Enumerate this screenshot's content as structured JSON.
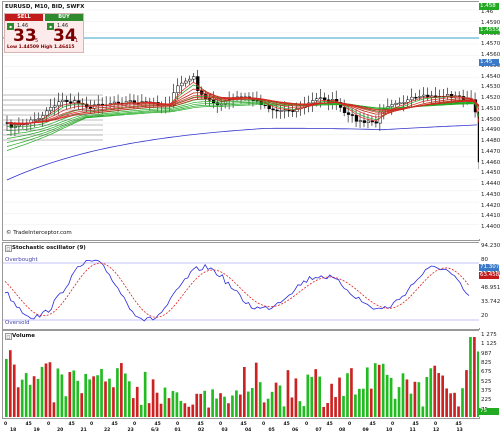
{
  "main_chart": {
    "symbol_header": "EURUSD, M10, BID, SWFX",
    "watermark": "© TradeInterceptor.com",
    "y_axis_labels": [
      "1.46",
      "1.45900",
      "1.45800",
      "1.45700",
      "1.45600",
      "1.45500",
      "1.45400",
      "1.45300",
      "1.45200",
      "1.45100",
      "1.45000",
      "1.44900",
      "1.44800",
      "1.44700",
      "1.44600",
      "1.44500",
      "1.44400",
      "1.44300",
      "1.44200",
      "1.44100",
      "1.44000"
    ],
    "price_tags": {
      "top": "1.458",
      "mid": "1.4555",
      "current": "1.45_"
    },
    "colors": {
      "bull_candle": "#ffffff",
      "bear_candle": "#000000",
      "ma_fast": "#dd2222",
      "ma_slow": "#22aa22",
      "ma_long": "#3333cc",
      "hline": "#3aa0c8"
    }
  },
  "trade_ticket": {
    "sell_label": "SELL",
    "buy_label": "BUY",
    "sell_small": "1.46",
    "buy_small": "1.46",
    "sell_big": "33",
    "buy_big": "34",
    "sell_sup": "5",
    "buy_sup": "1",
    "low_high": "Low 1.44509  High 1.46415",
    "sell_color": "#c21b1b",
    "buy_color": "#2e8b2e"
  },
  "stochastic": {
    "title": "Stochastic oscillator (9)",
    "overbought_label": "Overbought",
    "oversold_label": "Oversold",
    "y_labels": [
      "94.230",
      "80",
      "67.258",
      "48.951",
      "33.742",
      "20"
    ],
    "tag_top": "71.307",
    "tag_mid": "63.458",
    "colors": {
      "k_line": "#2b2bdd",
      "d_line": "#e02020",
      "level": "#8888ff"
    }
  },
  "volume": {
    "title": "Volume",
    "y_labels": [
      "1 275",
      "1 125",
      "987",
      "825",
      "675",
      "525",
      "375",
      "225",
      "75"
    ],
    "tag": "75",
    "colors": {
      "up": "#22bb22",
      "down": "#cc2222"
    }
  },
  "x_axis": {
    "top_row": [
      "0",
      "45",
      "0",
      "45",
      "0",
      "45",
      "0",
      "45",
      "0",
      "45",
      "0",
      "45",
      "0",
      "45",
      "0",
      "45",
      "0",
      "45",
      "0",
      "45",
      "0",
      "45"
    ],
    "bottom_row": [
      "18",
      "19",
      "20",
      "21",
      "22",
      "23",
      "6/3",
      "01",
      "02",
      "03",
      "04",
      "05",
      "06",
      "07",
      "08",
      "09",
      "10",
      "11",
      "12",
      "13"
    ]
  }
}
